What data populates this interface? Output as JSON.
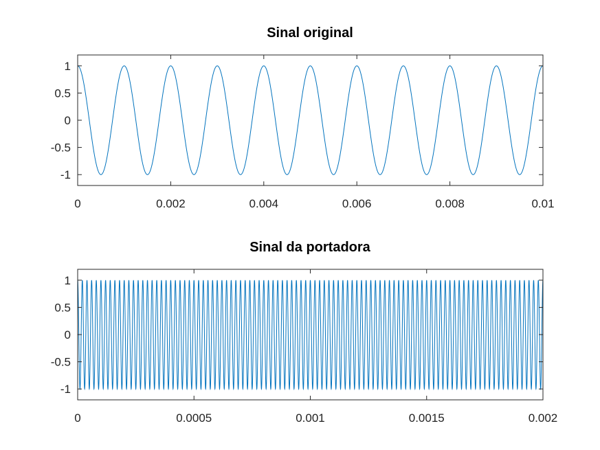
{
  "chart_data": [
    {
      "type": "line",
      "title": "Sinal original",
      "xlabel": "",
      "ylabel": "",
      "xlim": [
        0,
        0.01
      ],
      "ylim": [
        -1.2,
        1.2
      ],
      "x_ticks": [
        0,
        0.002,
        0.004,
        0.006,
        0.008,
        0.01
      ],
      "x_tick_labels": [
        "0",
        "0.002",
        "0.004",
        "0.006",
        "0.008",
        "0.01"
      ],
      "y_ticks": [
        1,
        0.5,
        0,
        -0.5,
        -1
      ],
      "y_tick_labels": [
        "1",
        "0.5",
        "0",
        "-0.5",
        "-1"
      ],
      "grid": false,
      "series": [
        {
          "function": "cos",
          "amplitude": 1,
          "frequency_hz": 1000,
          "x_start": 0,
          "x_end": 0.01,
          "color": "#0072bd"
        }
      ]
    },
    {
      "type": "line",
      "title": "Sinal da portadora",
      "xlabel": "",
      "ylabel": "",
      "xlim": [
        0,
        0.002
      ],
      "ylim": [
        -1.2,
        1.2
      ],
      "x_ticks": [
        0,
        0.0005,
        0.001,
        0.0015,
        0.002
      ],
      "x_tick_labels": [
        "0",
        "0.0005",
        "0.001",
        "0.0015",
        "0.002"
      ],
      "y_ticks": [
        1,
        0.5,
        0,
        -0.5,
        -1
      ],
      "y_tick_labels": [
        "1",
        "0.5",
        "0",
        "-0.5",
        "-1"
      ],
      "grid": false,
      "series": [
        {
          "function": "cos",
          "amplitude": 1,
          "frequency_hz": 50000,
          "x_start": 0,
          "x_end": 0.002,
          "color": "#0072bd"
        }
      ]
    }
  ]
}
